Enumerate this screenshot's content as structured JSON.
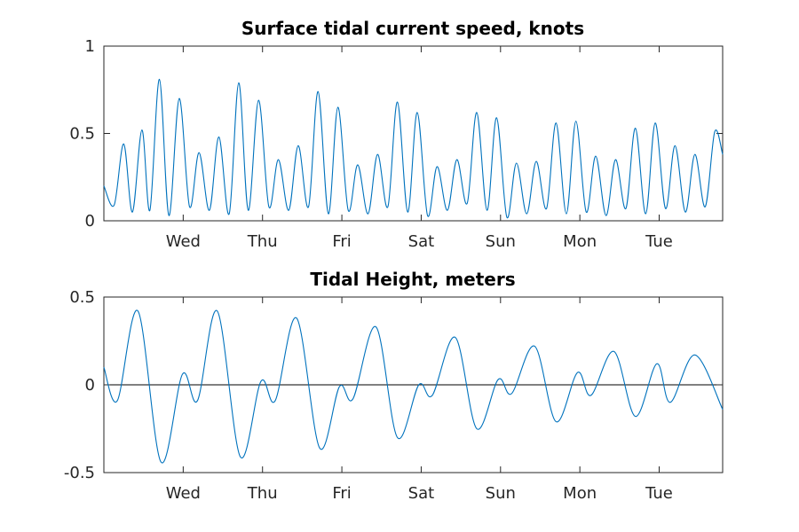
{
  "chart_data": [
    {
      "type": "line",
      "title": "Surface tidal current speed, knots",
      "xlabel": "",
      "ylabel": "",
      "xlim_days": [
        0,
        7.8
      ],
      "ylim": [
        0,
        1
      ],
      "yticks": [
        0,
        0.5,
        1
      ],
      "ytick_labels": [
        "0",
        "0.5",
        "1"
      ],
      "xticks_days": [
        1,
        2,
        3,
        4,
        5,
        6,
        7
      ],
      "xtick_labels": [
        "Wed",
        "Thu",
        "Fri",
        "Sat",
        "Sun",
        "Mon",
        "Tue"
      ],
      "color": "#0072bd",
      "series": [
        {
          "x": [
            0.0,
            0.13,
            0.25,
            0.36,
            0.48,
            0.58,
            0.7,
            0.82,
            0.95,
            1.08,
            1.2,
            1.33,
            1.45,
            1.58,
            1.7,
            1.82,
            1.95,
            2.08,
            2.2,
            2.33,
            2.45,
            2.58,
            2.7,
            2.83,
            2.95,
            3.08,
            3.2,
            3.33,
            3.45,
            3.58,
            3.7,
            3.83,
            3.95,
            4.08,
            4.2,
            4.33,
            4.45,
            4.58,
            4.7,
            4.83,
            4.95,
            5.08,
            5.2,
            5.33,
            5.45,
            5.58,
            5.7,
            5.83,
            5.95,
            6.08,
            6.2,
            6.33,
            6.45,
            6.58,
            6.7,
            6.83,
            6.95,
            7.08,
            7.2,
            7.33,
            7.45,
            7.58,
            7.7,
            7.8
          ],
          "y": [
            0.2,
            0.09,
            0.44,
            0.05,
            0.52,
            0.06,
            0.81,
            0.03,
            0.7,
            0.08,
            0.39,
            0.06,
            0.48,
            0.04,
            0.79,
            0.06,
            0.69,
            0.08,
            0.35,
            0.06,
            0.43,
            0.08,
            0.74,
            0.04,
            0.65,
            0.06,
            0.32,
            0.04,
            0.38,
            0.08,
            0.68,
            0.05,
            0.62,
            0.03,
            0.31,
            0.06,
            0.35,
            0.1,
            0.62,
            0.06,
            0.59,
            0.02,
            0.33,
            0.04,
            0.34,
            0.07,
            0.56,
            0.04,
            0.57,
            0.05,
            0.37,
            0.03,
            0.35,
            0.07,
            0.53,
            0.04,
            0.56,
            0.07,
            0.43,
            0.05,
            0.38,
            0.08,
            0.51,
            0.38
          ]
        }
      ]
    },
    {
      "type": "line",
      "title": "Tidal Height, meters",
      "xlabel": "",
      "ylabel": "",
      "xlim_days": [
        0,
        7.8
      ],
      "ylim": [
        -0.5,
        0.5
      ],
      "yticks": [
        -0.5,
        0,
        0.5
      ],
      "ytick_labels": [
        "-0.5",
        "0",
        "0.5"
      ],
      "xticks_days": [
        1,
        2,
        3,
        4,
        5,
        6,
        7
      ],
      "xtick_labels": [
        "Wed",
        "Thu",
        "Fri",
        "Sat",
        "Sun",
        "Mon",
        "Tue"
      ],
      "zero_line": true,
      "color": "#0072bd",
      "series": [
        {
          "x": [
            0.0,
            0.17,
            0.43,
            0.72,
            0.99,
            1.18,
            1.43,
            1.72,
            1.98,
            2.16,
            2.43,
            2.72,
            2.97,
            3.14,
            3.43,
            3.7,
            3.97,
            4.14,
            4.43,
            4.7,
            4.97,
            5.14,
            5.43,
            5.7,
            5.97,
            6.14,
            6.43,
            6.7,
            6.97,
            7.14,
            7.45,
            7.8
          ],
          "y": [
            0.1,
            -0.09,
            0.42,
            -0.44,
            0.06,
            -0.09,
            0.42,
            -0.41,
            0.02,
            -0.09,
            0.38,
            -0.36,
            -0.01,
            -0.08,
            0.33,
            -0.3,
            0.0,
            -0.06,
            0.27,
            -0.25,
            0.03,
            -0.05,
            0.22,
            -0.21,
            0.07,
            -0.06,
            0.19,
            -0.18,
            0.12,
            -0.1,
            0.17,
            -0.14
          ]
        }
      ]
    }
  ]
}
